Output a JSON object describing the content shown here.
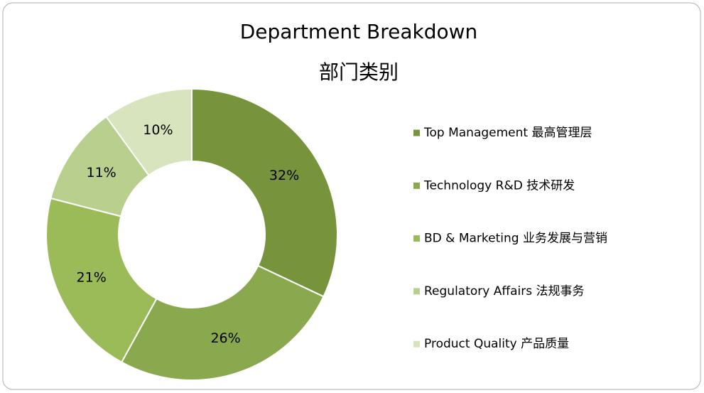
{
  "chart_data": {
    "type": "pie",
    "title": "Department Breakdown",
    "subtitle": "部门类别",
    "categories": [
      "Top Management 最高管理层",
      "Technology R&D 技术研发",
      "BD & Marketing 业务发展与营销",
      "Regulatory Affairs 法规事务",
      "Product Quality 产品质量"
    ],
    "values": [
      32,
      26,
      21,
      11,
      10
    ],
    "value_labels": [
      "32%",
      "26%",
      "21%",
      "11%",
      "10%"
    ],
    "colors": [
      "#77933c",
      "#8aa94e",
      "#9bbb59",
      "#b9cf8e",
      "#d7e4bd"
    ],
    "donut": true,
    "legend": "right"
  }
}
